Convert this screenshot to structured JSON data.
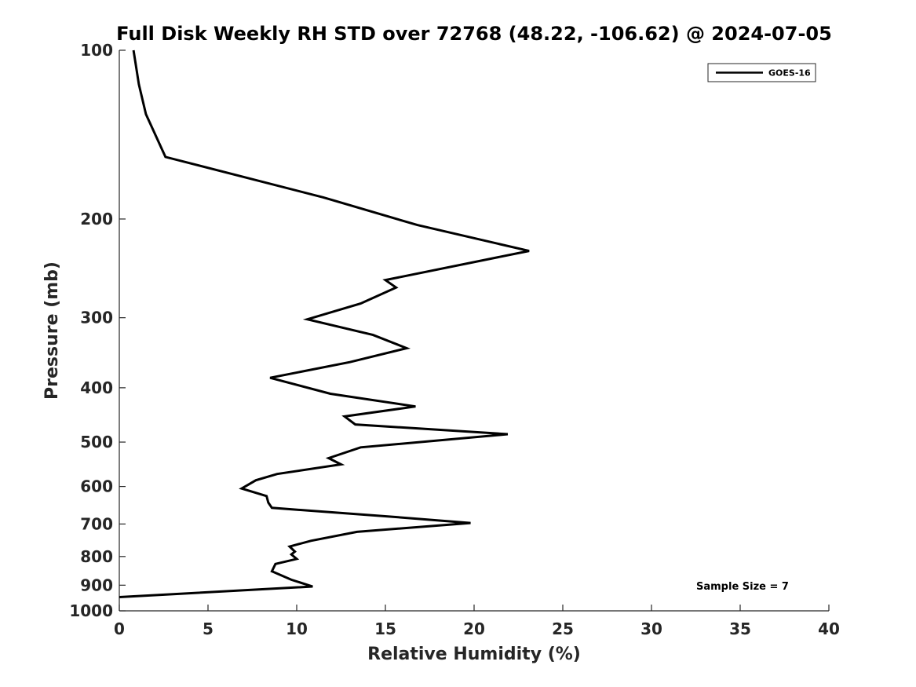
{
  "chart_data": {
    "type": "line",
    "title": "Full Disk Weekly RH STD over 72768 (48.22, -106.62) @ 2024-07-05",
    "xlabel": "Relative Humidity (%)",
    "ylabel": "Pressure (mb)",
    "xlim": [
      0,
      40
    ],
    "ylim": [
      100,
      1000
    ],
    "yscale": "log",
    "y_reversed": true,
    "grid": false,
    "xticks": [
      0,
      5,
      10,
      15,
      20,
      25,
      30,
      35,
      40
    ],
    "xtick_labels": [
      "0",
      "5",
      "10",
      "15",
      "20",
      "25",
      "30",
      "35",
      "40"
    ],
    "yticks": [
      100,
      200,
      300,
      400,
      500,
      600,
      700,
      800,
      900,
      1000
    ],
    "ytick_labels": [
      "100",
      "200",
      "300",
      "400",
      "500",
      "600",
      "700",
      "800",
      "900",
      "1000"
    ],
    "legend": {
      "position": "top-right",
      "entries": [
        "GOES-16"
      ]
    },
    "annotation": "Sample Size = 7",
    "series": [
      {
        "name": "GOES-16",
        "color": "#000000",
        "x": [
          0.8,
          1.1,
          1.5,
          2.6,
          11.5,
          16.8,
          23.1,
          15.0,
          15.6,
          13.6,
          10.6,
          14.3,
          16.2,
          13.0,
          8.5,
          11.9,
          16.7,
          12.7,
          13.3,
          21.9,
          13.6,
          11.8,
          12.5,
          8.9,
          7.7,
          6.9,
          8.3,
          8.4,
          8.6,
          15.5,
          19.8,
          13.4,
          10.8,
          9.6,
          9.9,
          9.7,
          10.0,
          8.8,
          8.6,
          9.7,
          10.9,
          0.0
        ],
        "y": [
          100,
          115,
          130,
          155,
          183,
          205,
          228,
          257,
          265,
          283,
          302,
          322,
          340,
          360,
          384,
          410,
          432,
          450,
          465,
          484,
          511,
          534,
          548,
          570,
          585,
          605,
          624,
          641,
          655,
          680,
          697,
          723,
          750,
          768,
          784,
          793,
          808,
          825,
          850,
          880,
          905,
          945
        ]
      }
    ]
  }
}
